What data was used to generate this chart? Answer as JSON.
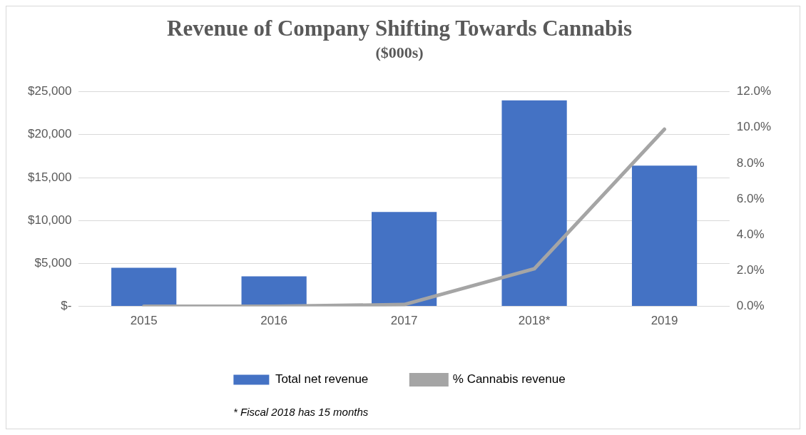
{
  "chart_data": {
    "type": "bar",
    "title": "Revenue of Company Shifting Towards Cannabis",
    "subtitle": "($000s)",
    "categories": [
      "2015",
      "2016",
      "2017",
      "2018*",
      "2019"
    ],
    "series": [
      {
        "name": "Total net revenue",
        "color": "#4472c4",
        "values": [
          4500,
          3500,
          11000,
          24000,
          16400
        ]
      },
      {
        "name": "% Cannabis revenue",
        "type": "line",
        "axis": "y2",
        "color": "#a5a5a5",
        "values": [
          0,
          0,
          0.1,
          2.1,
          9.9
        ]
      }
    ],
    "ylim": [
      0,
      25000
    ],
    "yticks": [
      {
        "value": 0,
        "label": "$-"
      },
      {
        "value": 5000,
        "label": "$5,000"
      },
      {
        "value": 10000,
        "label": "$10,000"
      },
      {
        "value": 15000,
        "label": "$15,000"
      },
      {
        "value": 20000,
        "label": "$20,000"
      },
      {
        "value": 25000,
        "label": "$25,000"
      }
    ],
    "y2lim": [
      0,
      12
    ],
    "y2ticks": [
      {
        "value": 0,
        "label": "0.0%"
      },
      {
        "value": 2,
        "label": "2.0%"
      },
      {
        "value": 4,
        "label": "4.0%"
      },
      {
        "value": 6,
        "label": "6.0%"
      },
      {
        "value": 8,
        "label": "8.0%"
      },
      {
        "value": 10,
        "label": "10.0%"
      },
      {
        "value": 12,
        "label": "12.0%"
      }
    ],
    "grid": "y",
    "legend": "bottom",
    "marker": "none",
    "line_style": "solid",
    "annotations": [
      "* Fiscal 2018 has 15 months"
    ]
  }
}
